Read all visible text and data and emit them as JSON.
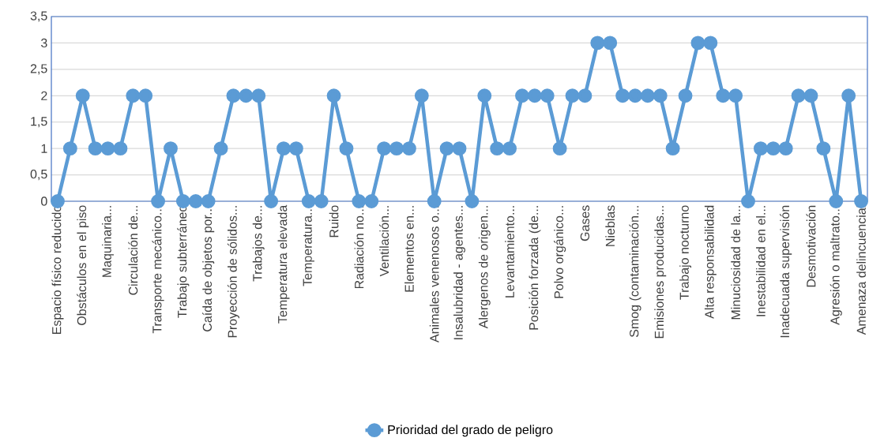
{
  "chart_data": {
    "type": "line",
    "categories": [
      "Espacio físico reducido",
      null,
      "Obstáculos en el piso",
      null,
      "Maquinaria...",
      null,
      "Circulación de...",
      null,
      "Transporte mecánico...",
      null,
      "Trabajo subterráneo",
      null,
      "Caída de objetos por...",
      null,
      "Proyección de sólidos...",
      null,
      "Trabajos de...",
      null,
      "Temperatura elevada",
      null,
      "Temperatura...",
      null,
      "Ruido",
      null,
      "Radiación no...",
      null,
      "Ventilación...",
      null,
      "Elementos en...",
      null,
      "Animales venenosos o...",
      null,
      "Insalubridad - agentes...",
      null,
      "Alergenos de origen...",
      null,
      "Levantamiento...",
      null,
      "Posición forzada (de...",
      null,
      "Polvo orgánico...",
      null,
      "Gases",
      null,
      "Nieblas",
      null,
      "Smog (contaminación...",
      null,
      "Emisiones producidas...",
      null,
      "Trabajo nocturno",
      null,
      "Alta responsabilidad",
      null,
      "Minuciosidad de la...",
      null,
      "Inestabilidad en el...",
      null,
      "Inadecuada supervisión",
      null,
      "Desmotivación",
      null,
      "Agresión o maltrato...",
      null,
      "Amenaza delincuencial"
    ],
    "series": [
      {
        "name": "Prioridad del grado de peligro",
        "color": "#5b9bd5",
        "values": [
          0,
          1,
          2,
          1,
          1,
          1,
          2,
          2,
          0,
          1,
          0,
          0,
          0,
          1,
          2,
          2,
          2,
          0,
          1,
          1,
          0,
          0,
          2,
          1,
          0,
          0,
          1,
          1,
          1,
          2,
          0,
          1,
          1,
          0,
          2,
          1,
          1,
          2,
          2,
          2,
          1,
          2,
          2,
          3,
          3,
          2,
          2,
          2,
          2,
          1,
          2,
          3,
          3,
          2,
          2,
          0,
          1,
          1,
          1,
          2,
          2,
          1,
          0,
          2,
          0
        ]
      }
    ],
    "ylim": [
      0,
      3.5
    ],
    "yticks": [
      0,
      {
        "value": 0.5,
        "label": "0,5"
      },
      1,
      {
        "value": 1.5,
        "label": "1,5"
      },
      2,
      {
        "value": 2.5,
        "label": "2,5"
      },
      3,
      {
        "value": 3.5,
        "label": "3,5"
      }
    ],
    "grid": "y",
    "legend": "bottom",
    "marker": "circle",
    "line_style": "solid"
  }
}
